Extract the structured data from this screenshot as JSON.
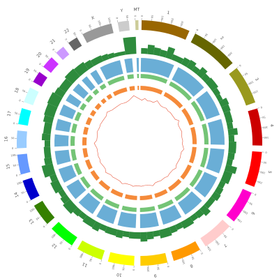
{
  "chart_data": {
    "type": "circos",
    "chromosomes": [
      {
        "name": "1",
        "color": "#996600",
        "length": 249,
        "ticks": [
          0,
          50,
          100,
          150,
          200
        ]
      },
      {
        "name": "2",
        "color": "#666600",
        "length": 242,
        "ticks": [
          0,
          50,
          100,
          150,
          200
        ]
      },
      {
        "name": "3",
        "color": "#99991e",
        "length": 198,
        "ticks": [
          0,
          50,
          100,
          150
        ]
      },
      {
        "name": "4",
        "color": "#cc0000",
        "length": 190,
        "ticks": [
          0,
          50,
          100,
          150
        ]
      },
      {
        "name": "5",
        "color": "#ff0000",
        "length": 181,
        "ticks": [
          0,
          50,
          100,
          150
        ]
      },
      {
        "name": "6",
        "color": "#ff00cc",
        "length": 171,
        "ticks": [
          0,
          50,
          100,
          150
        ]
      },
      {
        "name": "7",
        "color": "#ffcccc",
        "length": 159,
        "ticks": [
          0,
          50,
          100,
          150
        ]
      },
      {
        "name": "8",
        "color": "#ff9900",
        "length": 145,
        "ticks": [
          0,
          50,
          100
        ]
      },
      {
        "name": "9",
        "color": "#ffcc00",
        "length": 138,
        "ticks": [
          0,
          50,
          100
        ]
      },
      {
        "name": "10",
        "color": "#ffff00",
        "length": 134,
        "ticks": [
          0,
          50,
          100
        ]
      },
      {
        "name": "11",
        "color": "#ccff00",
        "length": 135,
        "ticks": [
          0,
          50,
          100
        ]
      },
      {
        "name": "12",
        "color": "#00ff00",
        "length": 133,
        "ticks": [
          0,
          50,
          100
        ]
      },
      {
        "name": "13",
        "color": "#358000",
        "length": 114,
        "ticks": [
          0,
          50,
          100
        ]
      },
      {
        "name": "14",
        "color": "#0000cc",
        "length": 107,
        "ticks": [
          0,
          50,
          100
        ]
      },
      {
        "name": "15",
        "color": "#6699ff",
        "length": 102,
        "ticks": [
          0,
          50,
          100
        ]
      },
      {
        "name": "16",
        "color": "#99ccff",
        "length": 90,
        "ticks": [
          0,
          50
        ]
      },
      {
        "name": "17",
        "color": "#00ffff",
        "length": 83,
        "ticks": [
          0,
          50
        ]
      },
      {
        "name": "18",
        "color": "#ccffff",
        "length": 80,
        "ticks": [
          0,
          50
        ]
      },
      {
        "name": "19",
        "color": "#9900cc",
        "length": 59,
        "ticks": [
          0,
          50
        ]
      },
      {
        "name": "20",
        "color": "#cc33ff",
        "length": 64,
        "ticks": [
          0,
          50
        ]
      },
      {
        "name": "21",
        "color": "#cc99ff",
        "length": 47,
        "ticks": [
          0
        ]
      },
      {
        "name": "22",
        "color": "#666666",
        "length": 51,
        "ticks": [
          0,
          50
        ]
      },
      {
        "name": "X",
        "color": "#999999",
        "length": 156,
        "ticks": [
          0,
          50,
          100,
          150
        ]
      },
      {
        "name": "Y",
        "color": "#cccccc",
        "length": 57,
        "ticks": [
          0,
          50
        ]
      },
      {
        "name": "MT",
        "color": "#cccc99",
        "length": 0.0166,
        "ticks": [
          0
        ]
      }
    ],
    "tracks": [
      {
        "kind": "histogram",
        "color": "#2e8b3d",
        "range": [
          0,
          1
        ],
        "values": [
          0.3,
          0.5,
          0.4,
          0.35,
          0.6,
          0.3,
          0.4,
          0.45,
          0.3,
          0.5,
          0.35,
          0.4,
          0.3,
          0.25,
          0.45,
          0.4,
          0.35,
          0.3,
          0.5,
          0.3,
          0.4,
          0.35,
          0.3,
          0.6,
          0.45,
          0.3,
          0.35,
          0.4,
          0.3,
          0.5,
          0.35,
          0.3,
          0.4,
          0.3,
          0.35,
          0.45,
          0.3,
          0.4,
          0.5,
          0.35,
          0.3,
          0.4,
          0.35,
          0.3,
          0.45,
          0.4,
          0.3,
          0.35,
          0.5,
          0.4,
          0.3,
          0.45,
          0.35,
          0.6,
          0.4,
          0.35,
          0.3,
          0.45,
          0.4,
          0.5,
          0.55,
          0.6,
          0.5,
          0.45,
          0.55,
          0.5,
          0.4,
          0.35,
          0.3,
          0.25,
          0.2,
          0.9
        ]
      },
      {
        "kind": "blocks",
        "color": "#6aaed6"
      },
      {
        "kind": "blocks",
        "color": "#74c476"
      },
      {
        "kind": "blocks",
        "color": "#f58a3a"
      },
      {
        "kind": "line",
        "color": "#e8573c",
        "range": [
          0,
          1
        ],
        "values": [
          0.1,
          0.3,
          0.1,
          0.15,
          0.1,
          0.4,
          0.1,
          0.1,
          0.2,
          0.1,
          0.15,
          0.1,
          0.1,
          0.35,
          0.1,
          0.1,
          0.2,
          0.1,
          0.1,
          0.15,
          0.1,
          0.3,
          0.1,
          0.1,
          0.15,
          0.1,
          0.1,
          0.25,
          0.1,
          0.1,
          0.2,
          0.1,
          0.15,
          0.1,
          0.1,
          0.3,
          0.1,
          0.1,
          0.15,
          0.1,
          0.2,
          0.1,
          0.1,
          0.25,
          0.1,
          0.1,
          0.15,
          0.1,
          0.3,
          0.1,
          0.1,
          0.2,
          0.1,
          0.15,
          0.1,
          0.1,
          0.35,
          0.1,
          0.1,
          0.2,
          0.1,
          0.15,
          0.1,
          0.1,
          0.3,
          0.1,
          0.1,
          0.15,
          0.1,
          0.1,
          0.2,
          0.6
        ]
      }
    ]
  }
}
